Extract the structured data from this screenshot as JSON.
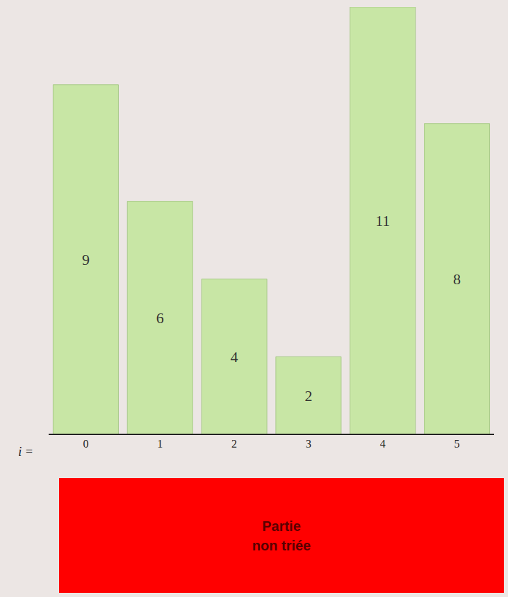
{
  "chart_data": {
    "type": "bar",
    "categories": [
      "0",
      "1",
      "2",
      "3",
      "4",
      "5"
    ],
    "values": [
      9,
      6,
      4,
      2,
      11,
      8
    ],
    "color": "#c8e6a5",
    "ylim": [
      0,
      11
    ],
    "x_label": "i =",
    "data_labels": true,
    "tick_labels": "x",
    "annotation": "Partie non triée"
  }
}
